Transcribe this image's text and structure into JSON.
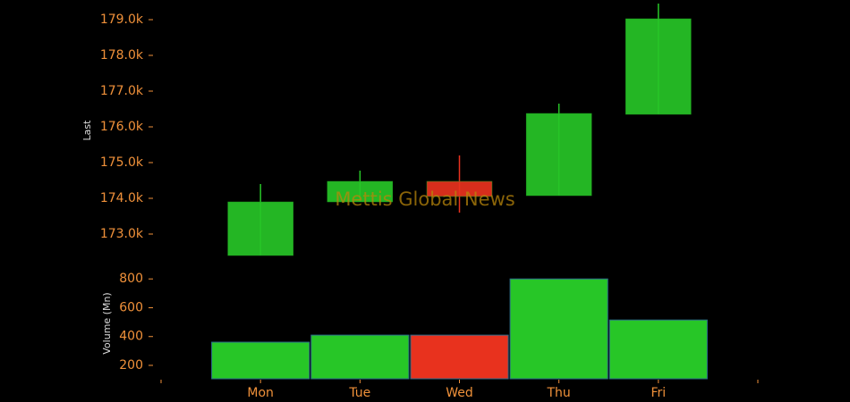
{
  "chart_data": {
    "type": "candlestick",
    "watermark": "Mettis Global News",
    "categories": [
      "Mon",
      "Tue",
      "Wed",
      "Thu",
      "Fri"
    ],
    "open": [
      172400,
      173900,
      174475,
      174075,
      176350
    ],
    "high": [
      174400,
      174775,
      175200,
      176650,
      179450
    ],
    "low": [
      172400,
      173900,
      173600,
      174075,
      176350
    ],
    "close": [
      173900,
      174475,
      174050,
      176375,
      179025
    ],
    "volume": [
      361,
      410,
      410,
      800,
      515
    ],
    "up_color": "#27c627",
    "down_color": "#e8321e",
    "ylabel": "Last",
    "y2label": "Volume (Mn)",
    "ylim": [
      172175,
      179550
    ],
    "yticks": [
      {
        "value": 173000,
        "label": "173.0k"
      },
      {
        "value": 174000,
        "label": "174.0k"
      },
      {
        "value": 175000,
        "label": "175.0k"
      },
      {
        "value": 176000,
        "label": "176.0k"
      },
      {
        "value": 177000,
        "label": "177.0k"
      },
      {
        "value": 178000,
        "label": "178.0k"
      },
      {
        "value": 179000,
        "label": "179.0k"
      }
    ],
    "y2lim": [
      107,
      820
    ],
    "y2ticks": [
      200,
      400,
      600,
      800
    ]
  }
}
